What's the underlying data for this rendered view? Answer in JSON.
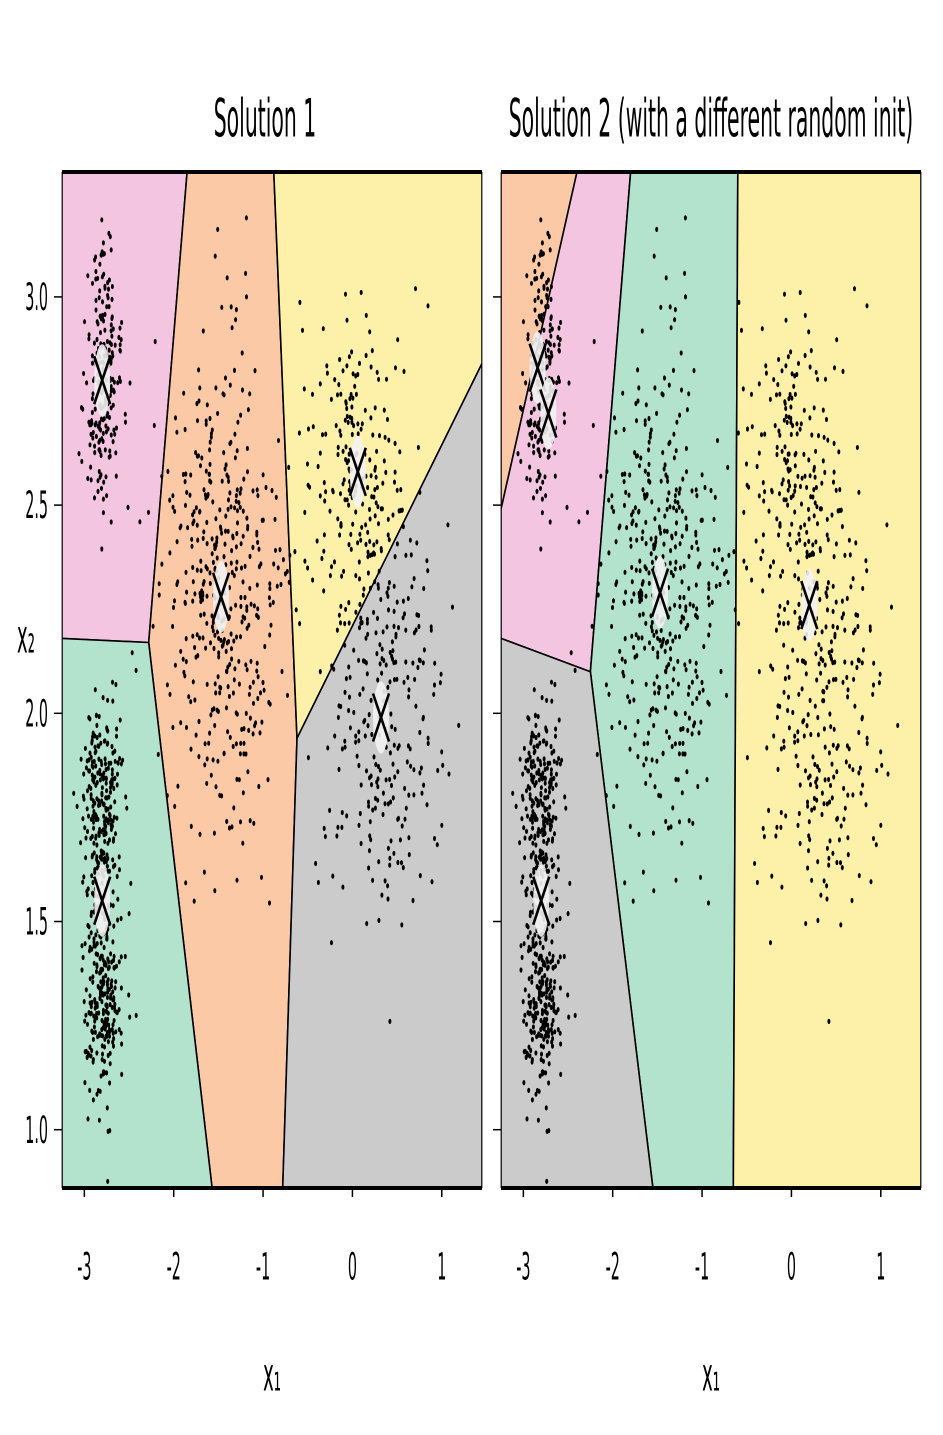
{
  "chart_data": [
    {
      "type": "scatter",
      "title": "Solution 1",
      "xlabel": "x₁",
      "ylabel": "x₂",
      "xlim": [
        -3.25,
        1.45
      ],
      "ylim": [
        0.86,
        3.3
      ],
      "xticks": [
        "-3",
        "-2",
        "-1",
        "0",
        "1"
      ],
      "yticks": [
        "1.0",
        "1.5",
        "2.0",
        "2.5",
        "3.0"
      ],
      "centroids": [
        {
          "x": -2.8,
          "y": 2.8
        },
        {
          "x": -1.47,
          "y": 2.28
        },
        {
          "x": 0.06,
          "y": 2.58
        },
        {
          "x": 0.32,
          "y": 1.99
        },
        {
          "x": -2.8,
          "y": 1.55
        }
      ],
      "regions": [
        {
          "color": "#f3c5e1",
          "polygon": [
            [
              -3.25,
              3.3
            ],
            [
              -1.85,
              3.3
            ],
            [
              -2.28,
              2.17
            ],
            [
              -3.25,
              2.18
            ]
          ]
        },
        {
          "color": "#fcc9a6",
          "polygon": [
            [
              -1.85,
              3.3
            ],
            [
              -0.88,
              3.3
            ],
            [
              -0.62,
              1.94
            ],
            [
              -0.78,
              0.86
            ],
            [
              -1.57,
              0.86
            ],
            [
              -2.28,
              2.17
            ]
          ]
        },
        {
          "color": "#fdf0a9",
          "polygon": [
            [
              -0.88,
              3.3
            ],
            [
              1.45,
              3.3
            ],
            [
              1.45,
              2.84
            ],
            [
              -0.62,
              1.94
            ]
          ]
        },
        {
          "color": "#cbcbcb",
          "polygon": [
            [
              -0.62,
              1.94
            ],
            [
              1.45,
              2.84
            ],
            [
              1.45,
              0.86
            ],
            [
              -0.78,
              0.86
            ]
          ]
        },
        {
          "color": "#b3e2cd",
          "polygon": [
            [
              -3.25,
              2.18
            ],
            [
              -2.28,
              2.17
            ],
            [
              -1.57,
              0.86
            ],
            [
              -3.25,
              0.86
            ]
          ]
        }
      ],
      "clusters": [
        {
          "cx": -2.8,
          "cy": 2.8,
          "sx": 0.1,
          "sy": 0.16,
          "n": 230
        },
        {
          "cx": -1.47,
          "cy": 2.28,
          "sx": 0.33,
          "sy": 0.3,
          "n": 450
        },
        {
          "cx": 0.06,
          "cy": 2.58,
          "sx": 0.29,
          "sy": 0.22,
          "n": 220
        },
        {
          "cx": 0.32,
          "cy": 1.99,
          "sx": 0.35,
          "sy": 0.28,
          "n": 260
        },
        {
          "cx": -2.8,
          "cy": 1.78,
          "sx": 0.11,
          "sy": 0.13,
          "n": 260
        },
        {
          "cx": -2.8,
          "cy": 1.33,
          "sx": 0.11,
          "sy": 0.13,
          "n": 260
        }
      ]
    },
    {
      "type": "scatter",
      "title": "Solution 2 (with a different random init)",
      "xlabel": "x₁",
      "ylabel": "",
      "xlim": [
        -3.25,
        1.45
      ],
      "ylim": [
        0.86,
        3.3
      ],
      "xticks": [
        "-3",
        "-2",
        "-1",
        "0",
        "1"
      ],
      "yticks": [],
      "centroids": [
        {
          "x": -2.84,
          "y": 2.83
        },
        {
          "x": -2.72,
          "y": 2.72
        },
        {
          "x": -1.47,
          "y": 2.29
        },
        {
          "x": 0.2,
          "y": 2.26
        },
        {
          "x": -2.8,
          "y": 1.55
        }
      ],
      "regions": [
        {
          "color": "#fcc9a6",
          "polygon": [
            [
              -3.25,
              3.3
            ],
            [
              -2.4,
              3.3
            ],
            [
              -3.25,
              2.49
            ]
          ]
        },
        {
          "color": "#f3c5e1",
          "polygon": [
            [
              -2.4,
              3.3
            ],
            [
              -1.8,
              3.3
            ],
            [
              -2.25,
              2.1
            ],
            [
              -3.25,
              2.18
            ],
            [
              -3.25,
              2.49
            ]
          ]
        },
        {
          "color": "#b3e2cd",
          "polygon": [
            [
              -1.8,
              3.3
            ],
            [
              -0.6,
              3.3
            ],
            [
              -0.65,
              0.86
            ],
            [
              -1.55,
              0.86
            ],
            [
              -2.25,
              2.1
            ]
          ]
        },
        {
          "color": "#fdf0a9",
          "polygon": [
            [
              -0.6,
              3.3
            ],
            [
              1.45,
              3.3
            ],
            [
              1.45,
              0.86
            ],
            [
              -0.65,
              0.86
            ]
          ]
        },
        {
          "color": "#cbcbcb",
          "polygon": [
            [
              -3.25,
              2.18
            ],
            [
              -2.25,
              2.1
            ],
            [
              -1.55,
              0.86
            ],
            [
              -3.25,
              0.86
            ]
          ]
        }
      ],
      "clusters": [
        {
          "cx": -2.8,
          "cy": 2.8,
          "sx": 0.1,
          "sy": 0.16,
          "n": 230
        },
        {
          "cx": -1.47,
          "cy": 2.28,
          "sx": 0.33,
          "sy": 0.3,
          "n": 450
        },
        {
          "cx": 0.06,
          "cy": 2.58,
          "sx": 0.29,
          "sy": 0.22,
          "n": 220
        },
        {
          "cx": 0.32,
          "cy": 1.99,
          "sx": 0.35,
          "sy": 0.28,
          "n": 260
        },
        {
          "cx": -2.8,
          "cy": 1.78,
          "sx": 0.11,
          "sy": 0.13,
          "n": 260
        },
        {
          "cx": -2.8,
          "cy": 1.33,
          "sx": 0.11,
          "sy": 0.13,
          "n": 260
        }
      ]
    }
  ]
}
